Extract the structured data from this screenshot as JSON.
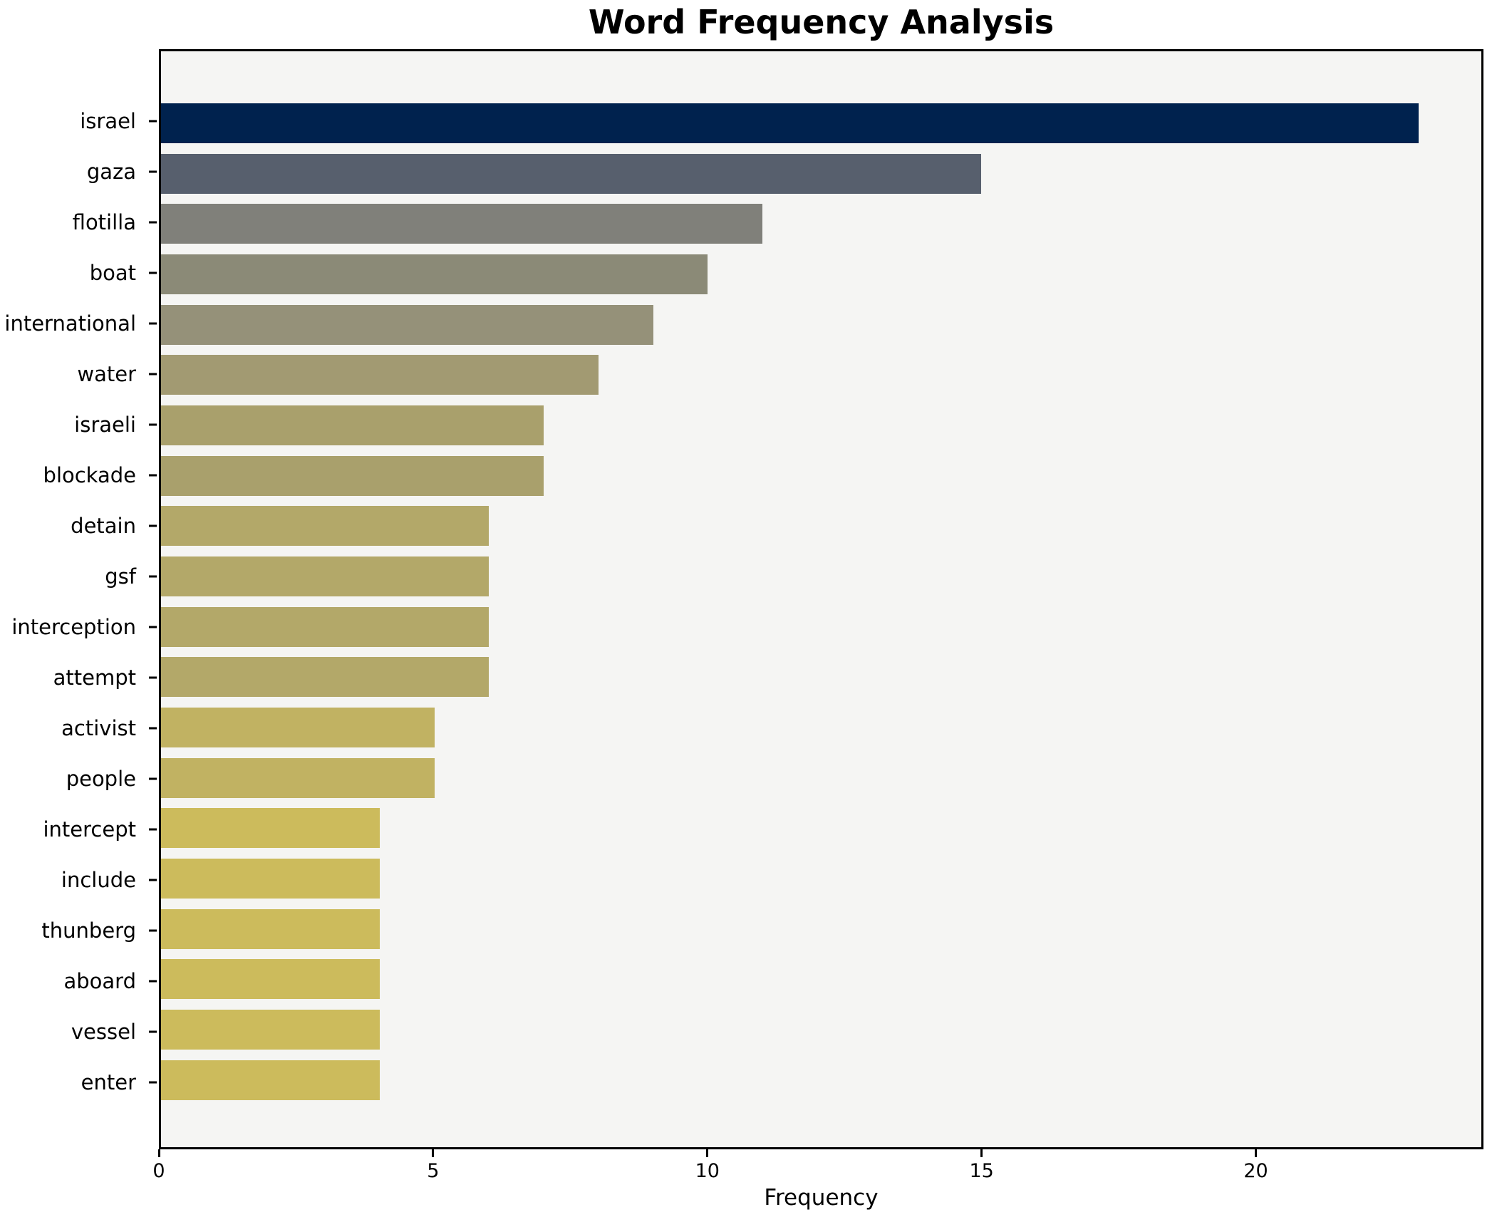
{
  "title": "Word Frequency Analysis",
  "xlabel": "Frequency",
  "chart_data": {
    "type": "bar",
    "orientation": "horizontal",
    "title": "Word Frequency Analysis",
    "xlabel": "Frequency",
    "ylabel": "",
    "categories": [
      "israel",
      "gaza",
      "flotilla",
      "boat",
      "international",
      "water",
      "israeli",
      "blockade",
      "detain",
      "gsf",
      "interception",
      "attempt",
      "activist",
      "people",
      "intercept",
      "include",
      "thunberg",
      "aboard",
      "vessel",
      "enter"
    ],
    "values": [
      23,
      15,
      11,
      10,
      9,
      8,
      7,
      7,
      6,
      6,
      6,
      6,
      5,
      5,
      4,
      4,
      4,
      4,
      4,
      4
    ],
    "bar_colors": [
      "#00224e",
      "#575f6d",
      "#80807a",
      "#8b8a77",
      "#959179",
      "#a29a72",
      "#a9a06c",
      "#a9a06c",
      "#b3a869",
      "#b3a869",
      "#b3a869",
      "#b3a869",
      "#c1b262",
      "#c1b262",
      "#ccbb5c",
      "#ccbb5c",
      "#ccbb5c",
      "#ccbb5c",
      "#ccbb5c",
      "#ccbb5c"
    ],
    "xlim": [
      0,
      24.15
    ],
    "xticks": [
      0,
      5,
      10,
      15,
      20
    ],
    "grid": false,
    "legend": null,
    "plot_bg": "#f5f5f3",
    "fig_bg": "#ffffff"
  }
}
